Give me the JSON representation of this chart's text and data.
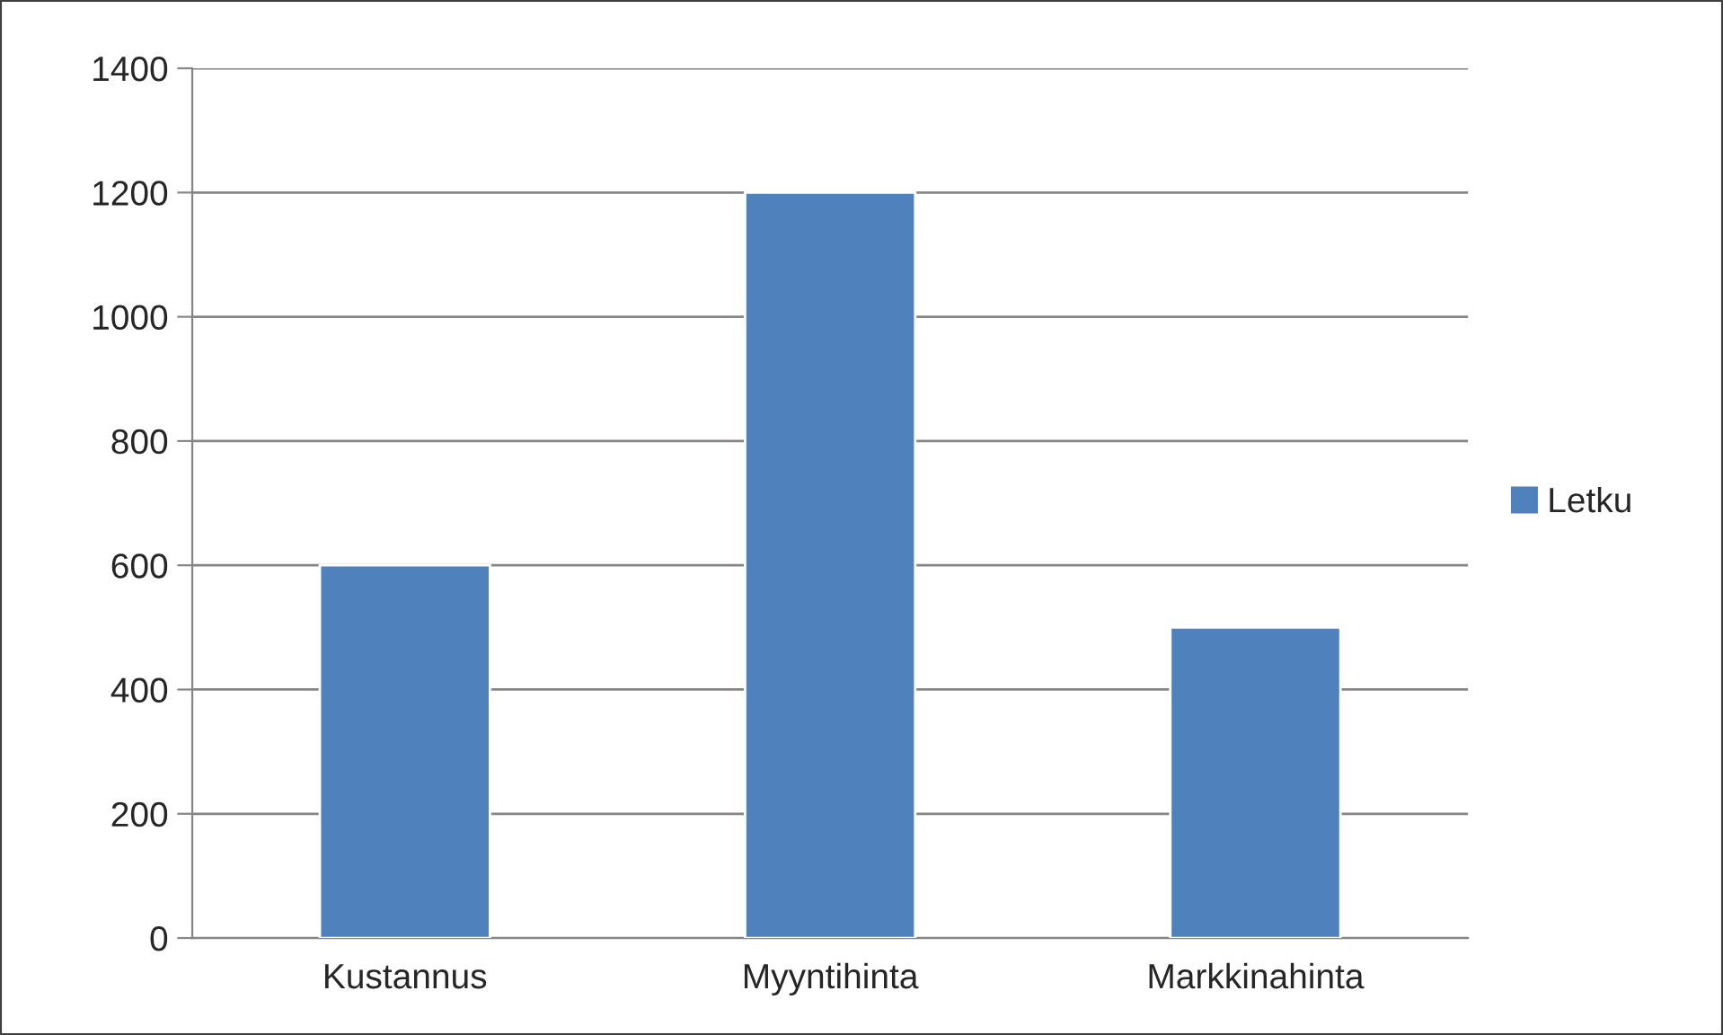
{
  "chart_data": {
    "type": "bar",
    "categories": [
      "Kustannus",
      "Myyntihinta",
      "Markkinahinta"
    ],
    "series": [
      {
        "name": "Letku",
        "color": "#4f81bd",
        "values": [
          600,
          1200,
          500
        ]
      }
    ],
    "ylim": [
      0,
      1400
    ],
    "yticks": [
      0,
      200,
      400,
      600,
      800,
      1000,
      1200,
      1400
    ],
    "grid": "y",
    "legend": "right"
  }
}
